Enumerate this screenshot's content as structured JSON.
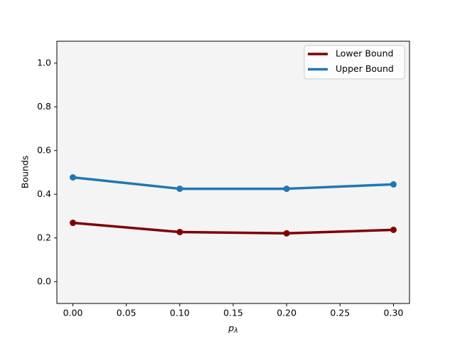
{
  "chart_data": {
    "type": "line",
    "ylabel": "Bounds",
    "xlabel": "p",
    "xlabel_subscript": "λ",
    "x": [
      0,
      0.1,
      0.2,
      0.3
    ],
    "series": [
      {
        "name": "Lower Bound",
        "color": "#800000",
        "values": [
          0.269,
          0.227,
          0.221,
          0.237
        ]
      },
      {
        "name": "Upper Bound",
        "color": "#1f77b4",
        "values": [
          0.477,
          0.425,
          0.425,
          0.445
        ]
      }
    ],
    "xlim": [
      -0.015,
      0.315
    ],
    "ylim": [
      -0.1,
      1.1
    ],
    "xticks": [
      {
        "value": 0,
        "label": "0.00"
      },
      0.05,
      {
        "value": 0.1,
        "label": "0.10"
      },
      0.15,
      {
        "value": 0.2,
        "label": "0.20"
      },
      0.25,
      {
        "value": 0.3,
        "label": "0.30"
      }
    ],
    "yticks": [
      {
        "value": 0,
        "label": "0.0"
      },
      0.2,
      0.4,
      0.6,
      0.8,
      {
        "value": 1,
        "label": "1.0"
      }
    ],
    "legend": "upper right",
    "background": "#f4f4f4"
  }
}
